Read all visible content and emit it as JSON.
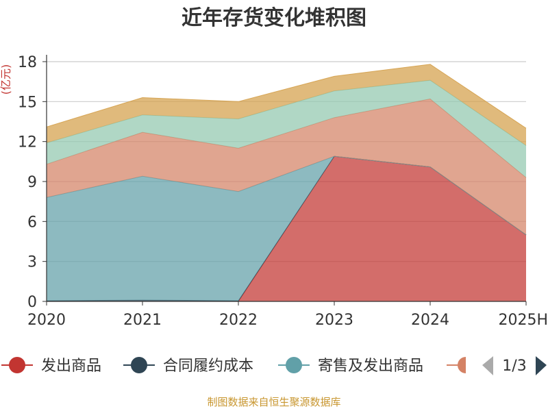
{
  "colors": {
    "发出商品": "#c23531",
    "合同履约成本": "#2f4554",
    "寄售及发出商品": "#61a0a8",
    "series4": "#d48265",
    "series5": "#91c7ae",
    "series6": "#d4a04a",
    "axis": "#333333",
    "grid": "#cccccc",
    "unit": "#c23531",
    "footer": "#c8962f",
    "pager_active": "#2f4554",
    "pager_inactive": "#aaaaaa"
  },
  "legend": {
    "items": [
      {
        "name": "发出商品",
        "color": "#c23531"
      },
      {
        "name": "合同履约成本",
        "color": "#2f4554"
      },
      {
        "name": "寄售及发出商品",
        "color": "#61a0a8"
      }
    ],
    "partial_color": "#d48265",
    "page": "1/3"
  },
  "footer": "制图数据来自恒生聚源数据库",
  "chart_data": {
    "type": "area",
    "stacked": true,
    "title": "近年存货变化堆积图",
    "ylabel": "(亿元)",
    "ylim": [
      0,
      18
    ],
    "yticks": [
      0,
      3,
      6,
      9,
      12,
      15,
      18
    ],
    "grid": true,
    "legend_position": "bottom",
    "categories": [
      "2020",
      "2021",
      "2022",
      "2023",
      "2024",
      "2025H"
    ],
    "series": [
      {
        "name": "发出商品",
        "color": "#c23531",
        "values": [
          0,
          0,
          0,
          10.9,
          10.1,
          5.0
        ]
      },
      {
        "name": "合同履约成本",
        "color": "#2f4554",
        "values": [
          0.05,
          0.1,
          0.05,
          0,
          0,
          0
        ]
      },
      {
        "name": "寄售及发出商品",
        "color": "#61a0a8",
        "values": [
          7.75,
          9.3,
          8.2,
          0,
          0,
          0
        ]
      },
      {
        "color": "#d48265",
        "values": [
          2.5,
          3.3,
          3.25,
          2.9,
          5.1,
          4.3
        ]
      },
      {
        "color": "#91c7ae",
        "values": [
          1.6,
          1.3,
          2.2,
          2.0,
          1.4,
          2.4
        ]
      },
      {
        "color": "#d4a04a",
        "values": [
          1.2,
          1.3,
          1.3,
          1.1,
          1.2,
          1.3
        ]
      }
    ]
  }
}
